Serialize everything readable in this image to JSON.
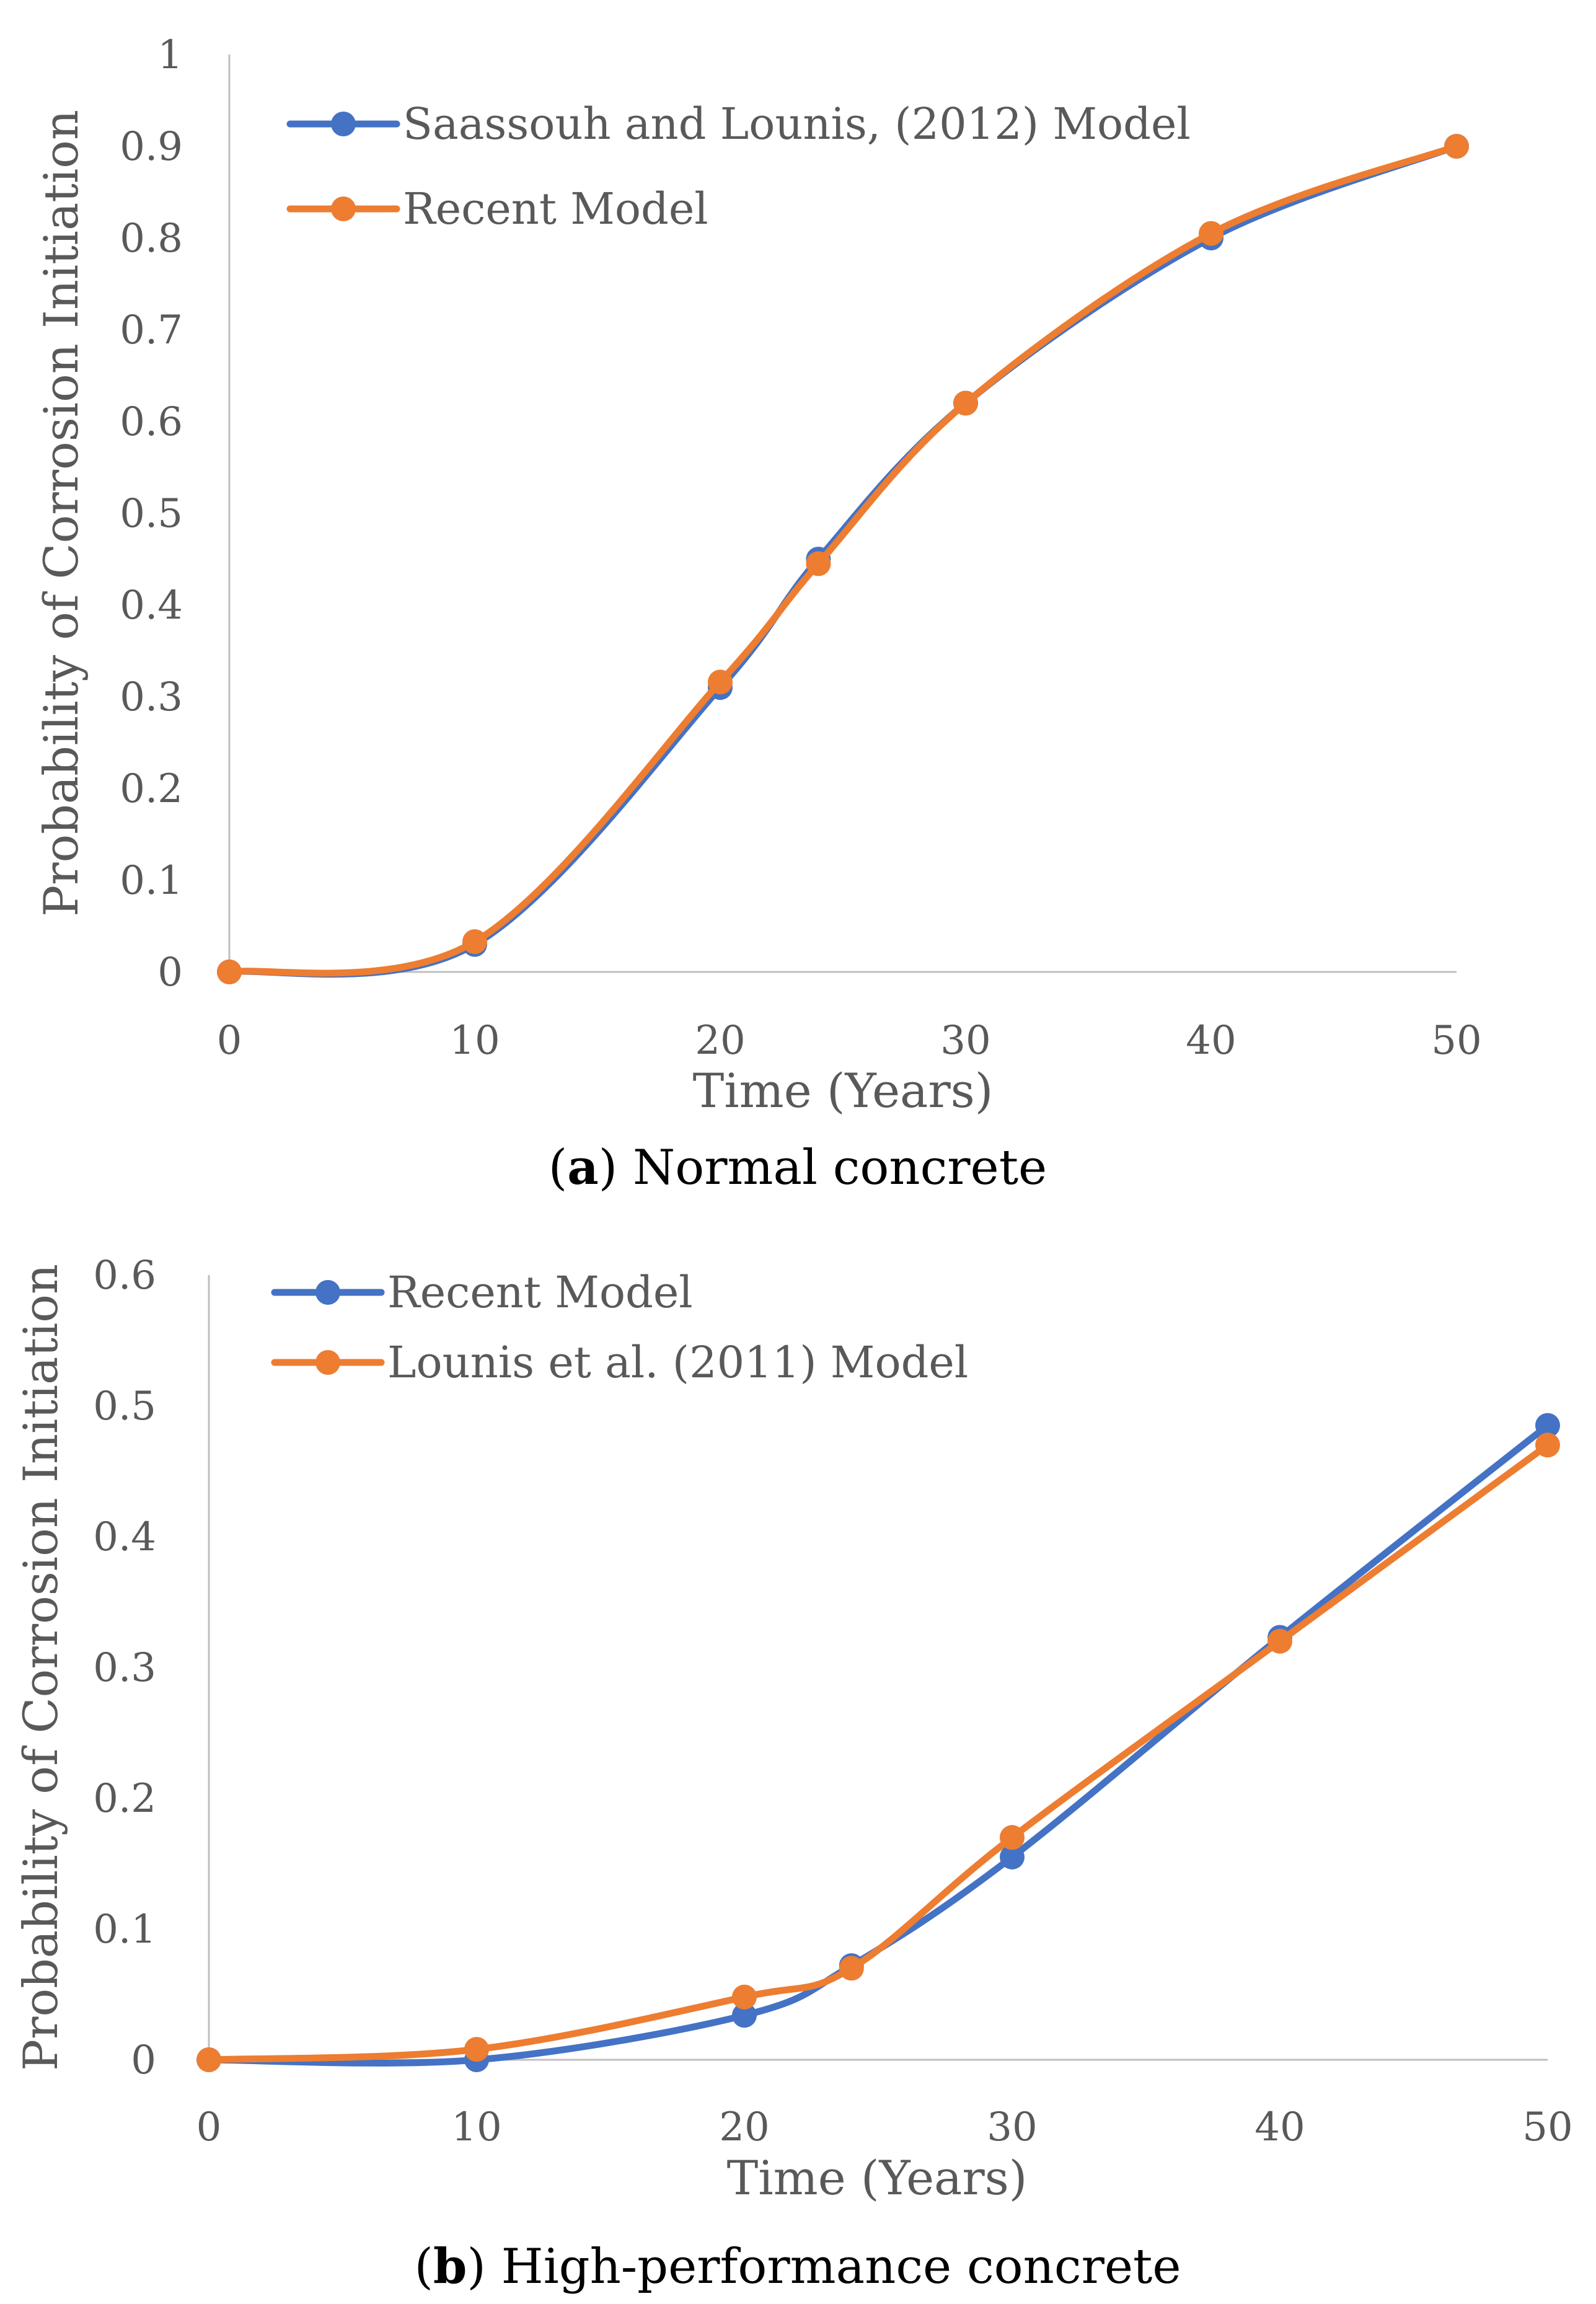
{
  "colors": {
    "blue": "#4472C4",
    "orange": "#ED7D31",
    "axis": "#BFBFBF",
    "text": "#595959"
  },
  "chart_data": [
    {
      "type": "line",
      "title": "",
      "xlabel": "Time (Years)",
      "ylabel": "Probability of Corrosion Initiation",
      "xlim": [
        0,
        50
      ],
      "ylim": [
        0,
        1
      ],
      "x_ticks": [
        "0",
        "10",
        "20",
        "30",
        "40",
        "50"
      ],
      "y_ticks": [
        "0",
        "0.1",
        "0.2",
        "0.3",
        "0.4",
        "0.5",
        "0.6",
        "0.7",
        "0.8",
        "0.9",
        "1"
      ],
      "legend_position": "top-left",
      "caption": {
        "letter": "a",
        "open": "(",
        "close": ")",
        "text": " Normal concrete"
      },
      "series": [
        {
          "name": "Saassouh and Lounis, (2012) Model",
          "color": "#4472C4",
          "x": [
            0,
            10,
            20,
            24,
            30,
            40,
            50
          ],
          "y": [
            0.0,
            0.03,
            0.31,
            0.45,
            0.62,
            0.8,
            0.9
          ]
        },
        {
          "name": "Recent Model",
          "color": "#ED7D31",
          "x": [
            0,
            10,
            20,
            24,
            30,
            40,
            50
          ],
          "y": [
            0.0,
            0.033,
            0.316,
            0.445,
            0.62,
            0.805,
            0.9
          ]
        }
      ]
    },
    {
      "type": "line",
      "title": "",
      "xlabel": "Time (Years)",
      "ylabel": "Probability of Corrosion Initiation",
      "xlim": [
        0,
        50
      ],
      "ylim": [
        0,
        0.6
      ],
      "x_ticks": [
        "0",
        "10",
        "20",
        "30",
        "40",
        "50"
      ],
      "y_ticks": [
        "0",
        "0.1",
        "0.2",
        "0.3",
        "0.4",
        "0.5",
        "0.6"
      ],
      "legend_position": "top-left",
      "caption": {
        "letter": "b",
        "open": "(",
        "close": ")",
        "text": " High-performance concrete"
      },
      "series": [
        {
          "name": "Recent Model",
          "color": "#4472C4",
          "x": [
            0,
            10,
            20,
            24,
            30,
            40,
            50
          ],
          "y": [
            0.0,
            0.0,
            0.034,
            0.072,
            0.155,
            0.323,
            0.485
          ]
        },
        {
          "name": "Lounis et al. (2011) Model",
          "color": "#ED7D31",
          "x": [
            0,
            10,
            20,
            24,
            30,
            40,
            50
          ],
          "y": [
            0.0,
            0.008,
            0.048,
            0.07,
            0.17,
            0.32,
            0.47
          ]
        }
      ]
    }
  ]
}
